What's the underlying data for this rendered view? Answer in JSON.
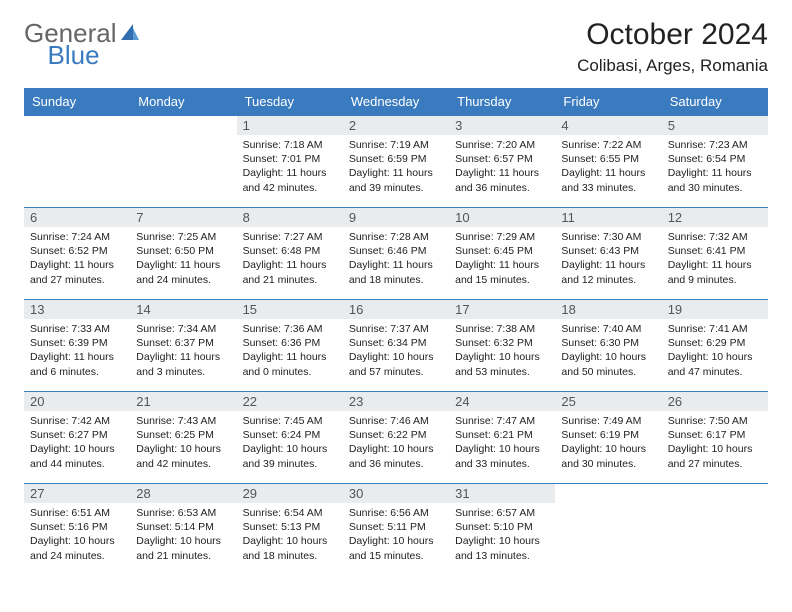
{
  "logo": {
    "part1": "General",
    "part2": "Blue"
  },
  "title": "October 2024",
  "location": "Colibasi, Arges, Romania",
  "colors": {
    "header_bg": "#3a7bbf",
    "header_text": "#ffffff",
    "daynum_bg": "#e9ecef",
    "border": "#3a7bbf",
    "text": "#222222"
  },
  "weekdays": [
    "Sunday",
    "Monday",
    "Tuesday",
    "Wednesday",
    "Thursday",
    "Friday",
    "Saturday"
  ],
  "weeks": [
    [
      null,
      null,
      {
        "n": "1",
        "sr": "Sunrise: 7:18 AM",
        "ss": "Sunset: 7:01 PM",
        "dl1": "Daylight: 11 hours",
        "dl2": "and 42 minutes."
      },
      {
        "n": "2",
        "sr": "Sunrise: 7:19 AM",
        "ss": "Sunset: 6:59 PM",
        "dl1": "Daylight: 11 hours",
        "dl2": "and 39 minutes."
      },
      {
        "n": "3",
        "sr": "Sunrise: 7:20 AM",
        "ss": "Sunset: 6:57 PM",
        "dl1": "Daylight: 11 hours",
        "dl2": "and 36 minutes."
      },
      {
        "n": "4",
        "sr": "Sunrise: 7:22 AM",
        "ss": "Sunset: 6:55 PM",
        "dl1": "Daylight: 11 hours",
        "dl2": "and 33 minutes."
      },
      {
        "n": "5",
        "sr": "Sunrise: 7:23 AM",
        "ss": "Sunset: 6:54 PM",
        "dl1": "Daylight: 11 hours",
        "dl2": "and 30 minutes."
      }
    ],
    [
      {
        "n": "6",
        "sr": "Sunrise: 7:24 AM",
        "ss": "Sunset: 6:52 PM",
        "dl1": "Daylight: 11 hours",
        "dl2": "and 27 minutes."
      },
      {
        "n": "7",
        "sr": "Sunrise: 7:25 AM",
        "ss": "Sunset: 6:50 PM",
        "dl1": "Daylight: 11 hours",
        "dl2": "and 24 minutes."
      },
      {
        "n": "8",
        "sr": "Sunrise: 7:27 AM",
        "ss": "Sunset: 6:48 PM",
        "dl1": "Daylight: 11 hours",
        "dl2": "and 21 minutes."
      },
      {
        "n": "9",
        "sr": "Sunrise: 7:28 AM",
        "ss": "Sunset: 6:46 PM",
        "dl1": "Daylight: 11 hours",
        "dl2": "and 18 minutes."
      },
      {
        "n": "10",
        "sr": "Sunrise: 7:29 AM",
        "ss": "Sunset: 6:45 PM",
        "dl1": "Daylight: 11 hours",
        "dl2": "and 15 minutes."
      },
      {
        "n": "11",
        "sr": "Sunrise: 7:30 AM",
        "ss": "Sunset: 6:43 PM",
        "dl1": "Daylight: 11 hours",
        "dl2": "and 12 minutes."
      },
      {
        "n": "12",
        "sr": "Sunrise: 7:32 AM",
        "ss": "Sunset: 6:41 PM",
        "dl1": "Daylight: 11 hours",
        "dl2": "and 9 minutes."
      }
    ],
    [
      {
        "n": "13",
        "sr": "Sunrise: 7:33 AM",
        "ss": "Sunset: 6:39 PM",
        "dl1": "Daylight: 11 hours",
        "dl2": "and 6 minutes."
      },
      {
        "n": "14",
        "sr": "Sunrise: 7:34 AM",
        "ss": "Sunset: 6:37 PM",
        "dl1": "Daylight: 11 hours",
        "dl2": "and 3 minutes."
      },
      {
        "n": "15",
        "sr": "Sunrise: 7:36 AM",
        "ss": "Sunset: 6:36 PM",
        "dl1": "Daylight: 11 hours",
        "dl2": "and 0 minutes."
      },
      {
        "n": "16",
        "sr": "Sunrise: 7:37 AM",
        "ss": "Sunset: 6:34 PM",
        "dl1": "Daylight: 10 hours",
        "dl2": "and 57 minutes."
      },
      {
        "n": "17",
        "sr": "Sunrise: 7:38 AM",
        "ss": "Sunset: 6:32 PM",
        "dl1": "Daylight: 10 hours",
        "dl2": "and 53 minutes."
      },
      {
        "n": "18",
        "sr": "Sunrise: 7:40 AM",
        "ss": "Sunset: 6:30 PM",
        "dl1": "Daylight: 10 hours",
        "dl2": "and 50 minutes."
      },
      {
        "n": "19",
        "sr": "Sunrise: 7:41 AM",
        "ss": "Sunset: 6:29 PM",
        "dl1": "Daylight: 10 hours",
        "dl2": "and 47 minutes."
      }
    ],
    [
      {
        "n": "20",
        "sr": "Sunrise: 7:42 AM",
        "ss": "Sunset: 6:27 PM",
        "dl1": "Daylight: 10 hours",
        "dl2": "and 44 minutes."
      },
      {
        "n": "21",
        "sr": "Sunrise: 7:43 AM",
        "ss": "Sunset: 6:25 PM",
        "dl1": "Daylight: 10 hours",
        "dl2": "and 42 minutes."
      },
      {
        "n": "22",
        "sr": "Sunrise: 7:45 AM",
        "ss": "Sunset: 6:24 PM",
        "dl1": "Daylight: 10 hours",
        "dl2": "and 39 minutes."
      },
      {
        "n": "23",
        "sr": "Sunrise: 7:46 AM",
        "ss": "Sunset: 6:22 PM",
        "dl1": "Daylight: 10 hours",
        "dl2": "and 36 minutes."
      },
      {
        "n": "24",
        "sr": "Sunrise: 7:47 AM",
        "ss": "Sunset: 6:21 PM",
        "dl1": "Daylight: 10 hours",
        "dl2": "and 33 minutes."
      },
      {
        "n": "25",
        "sr": "Sunrise: 7:49 AM",
        "ss": "Sunset: 6:19 PM",
        "dl1": "Daylight: 10 hours",
        "dl2": "and 30 minutes."
      },
      {
        "n": "26",
        "sr": "Sunrise: 7:50 AM",
        "ss": "Sunset: 6:17 PM",
        "dl1": "Daylight: 10 hours",
        "dl2": "and 27 minutes."
      }
    ],
    [
      {
        "n": "27",
        "sr": "Sunrise: 6:51 AM",
        "ss": "Sunset: 5:16 PM",
        "dl1": "Daylight: 10 hours",
        "dl2": "and 24 minutes."
      },
      {
        "n": "28",
        "sr": "Sunrise: 6:53 AM",
        "ss": "Sunset: 5:14 PM",
        "dl1": "Daylight: 10 hours",
        "dl2": "and 21 minutes."
      },
      {
        "n": "29",
        "sr": "Sunrise: 6:54 AM",
        "ss": "Sunset: 5:13 PM",
        "dl1": "Daylight: 10 hours",
        "dl2": "and 18 minutes."
      },
      {
        "n": "30",
        "sr": "Sunrise: 6:56 AM",
        "ss": "Sunset: 5:11 PM",
        "dl1": "Daylight: 10 hours",
        "dl2": "and 15 minutes."
      },
      {
        "n": "31",
        "sr": "Sunrise: 6:57 AM",
        "ss": "Sunset: 5:10 PM",
        "dl1": "Daylight: 10 hours",
        "dl2": "and 13 minutes."
      },
      null,
      null
    ]
  ]
}
